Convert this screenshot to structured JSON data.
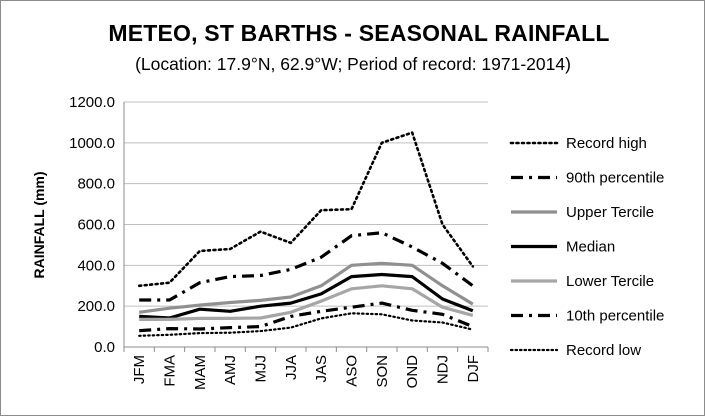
{
  "chart_data": {
    "type": "line",
    "title": "METEO, ST BARTHS - SEASONAL RAINFALL",
    "subtitle": "(Location: 17.9°N, 62.9°W; Period of record: 1971-2014)",
    "xlabel": "",
    "ylabel": "RAINFALL (mm)",
    "ylim": [
      0,
      1200
    ],
    "yticks": [
      "0.0",
      "200.0",
      "400.0",
      "600.0",
      "800.0",
      "1000.0",
      "1200.0"
    ],
    "categories": [
      "JFM",
      "FMA",
      "MAM",
      "AMJ",
      "MJJ",
      "JJA",
      "JAS",
      "ASO",
      "SON",
      "OND",
      "NDJ",
      "DJF"
    ],
    "grid": "horizontal",
    "legend": "right",
    "series": [
      {
        "name": "Record high",
        "color": "#000000",
        "style": "dotted-thick",
        "values": [
          300,
          315,
          470,
          480,
          565,
          510,
          670,
          675,
          1000,
          1050,
          600,
          395
        ]
      },
      {
        "name": "90th percentile",
        "color": "#000000",
        "style": "dashdot",
        "values": [
          230,
          230,
          315,
          345,
          350,
          380,
          440,
          545,
          560,
          490,
          410,
          300
        ]
      },
      {
        "name": "Upper Tercile",
        "color": "#909090",
        "style": "solid",
        "values": [
          170,
          190,
          205,
          218,
          228,
          245,
          300,
          400,
          410,
          400,
          300,
          210
        ]
      },
      {
        "name": "Median",
        "color": "#000000",
        "style": "solid",
        "values": [
          150,
          142,
          185,
          175,
          200,
          215,
          260,
          345,
          355,
          345,
          235,
          178
        ]
      },
      {
        "name": "Lower Tercile",
        "color": "#a6a6a6",
        "style": "solid",
        "values": [
          135,
          135,
          140,
          140,
          142,
          170,
          225,
          285,
          300,
          285,
          195,
          155
        ]
      },
      {
        "name": "10th percentile",
        "color": "#000000",
        "style": "dashdot",
        "values": [
          80,
          90,
          88,
          95,
          100,
          150,
          175,
          195,
          215,
          180,
          160,
          100
        ]
      },
      {
        "name": "Record low",
        "color": "#000000",
        "style": "dotted",
        "values": [
          55,
          60,
          68,
          70,
          78,
          95,
          140,
          165,
          160,
          130,
          120,
          85
        ]
      }
    ]
  }
}
